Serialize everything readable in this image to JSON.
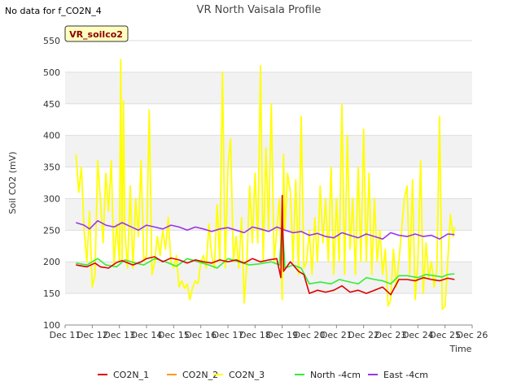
{
  "nodata_note": "No data for f_CO2N_4",
  "chart_data": {
    "type": "line",
    "title": "VR North Vaisala Profile",
    "site_badge": "VR_soilco2",
    "xlabel": "Time",
    "ylabel": "Soil CO2 (mV)",
    "ylim": [
      100,
      550
    ],
    "yticks": [
      100,
      150,
      200,
      250,
      300,
      350,
      400,
      450,
      500,
      550
    ],
    "xlim": [
      11,
      26
    ],
    "xticks": [
      {
        "value": 11,
        "label": "Dec 11"
      },
      {
        "value": 12,
        "label": "Dec 12"
      },
      {
        "value": 13,
        "label": "Dec 13"
      },
      {
        "value": 14,
        "label": "Dec 14"
      },
      {
        "value": 15,
        "label": "Dec 15"
      },
      {
        "value": 16,
        "label": "Dec 16"
      },
      {
        "value": 17,
        "label": "Dec 17"
      },
      {
        "value": 18,
        "label": "Dec 18"
      },
      {
        "value": 19,
        "label": "Dec 19"
      },
      {
        "value": 20,
        "label": "Dec 20"
      },
      {
        "value": 21,
        "label": "Dec 21"
      },
      {
        "value": 22,
        "label": "Dec 22"
      },
      {
        "value": 23,
        "label": "Dec 23"
      },
      {
        "value": 24,
        "label": "Dec 24"
      },
      {
        "value": 25,
        "label": "Dec 25"
      },
      {
        "value": 26,
        "label": "Dec 26"
      }
    ],
    "grid": true,
    "legend_position": "bottom",
    "series": [
      {
        "name": "CO2N_1",
        "color": "#dd0000",
        "points": [
          [
            11.4,
            195
          ],
          [
            11.8,
            192
          ],
          [
            12.1,
            198
          ],
          [
            12.3,
            192
          ],
          [
            12.6,
            190
          ],
          [
            12.9,
            199
          ],
          [
            13.1,
            202
          ],
          [
            13.5,
            195
          ],
          [
            13.8,
            200
          ],
          [
            14.0,
            205
          ],
          [
            14.3,
            208
          ],
          [
            14.6,
            200
          ],
          [
            14.9,
            206
          ],
          [
            15.2,
            203
          ],
          [
            15.5,
            198
          ],
          [
            15.8,
            203
          ],
          [
            16.1,
            200
          ],
          [
            16.4,
            198
          ],
          [
            16.7,
            203
          ],
          [
            17.0,
            200
          ],
          [
            17.3,
            203
          ],
          [
            17.6,
            198
          ],
          [
            17.9,
            205
          ],
          [
            18.2,
            200
          ],
          [
            18.5,
            203
          ],
          [
            18.8,
            205
          ],
          [
            18.95,
            175
          ],
          [
            19.0,
            305
          ],
          [
            19.05,
            185
          ],
          [
            19.3,
            200
          ],
          [
            19.6,
            185
          ],
          [
            19.8,
            180
          ],
          [
            20.0,
            150
          ],
          [
            20.3,
            155
          ],
          [
            20.6,
            152
          ],
          [
            20.9,
            155
          ],
          [
            21.2,
            162
          ],
          [
            21.5,
            152
          ],
          [
            21.8,
            155
          ],
          [
            22.1,
            150
          ],
          [
            22.4,
            155
          ],
          [
            22.7,
            160
          ],
          [
            23.0,
            148
          ],
          [
            23.3,
            172
          ],
          [
            23.6,
            172
          ],
          [
            23.9,
            170
          ],
          [
            24.2,
            175
          ],
          [
            24.5,
            172
          ],
          [
            24.8,
            170
          ],
          [
            25.1,
            174
          ],
          [
            25.35,
            172
          ]
        ]
      },
      {
        "name": "CO2N_2",
        "color": "#ff9900",
        "points": []
      },
      {
        "name": "CO2N_3",
        "color": "#ffff00",
        "points": [
          [
            11.4,
            370
          ],
          [
            11.5,
            310
          ],
          [
            11.6,
            350
          ],
          [
            11.7,
            250
          ],
          [
            11.8,
            200
          ],
          [
            11.9,
            280
          ],
          [
            12.0,
            160
          ],
          [
            12.1,
            180
          ],
          [
            12.2,
            360
          ],
          [
            12.3,
            300
          ],
          [
            12.4,
            230
          ],
          [
            12.5,
            340
          ],
          [
            12.6,
            280
          ],
          [
            12.7,
            360
          ],
          [
            12.8,
            195
          ],
          [
            12.9,
            260
          ],
          [
            13.0,
            200
          ],
          [
            13.05,
            520
          ],
          [
            13.1,
            200
          ],
          [
            13.15,
            455
          ],
          [
            13.2,
            250
          ],
          [
            13.3,
            190
          ],
          [
            13.4,
            320
          ],
          [
            13.5,
            190
          ],
          [
            13.6,
            300
          ],
          [
            13.7,
            240
          ],
          [
            13.8,
            360
          ],
          [
            13.9,
            200
          ],
          [
            14.0,
            210
          ],
          [
            14.1,
            440
          ],
          [
            14.2,
            180
          ],
          [
            14.3,
            200
          ],
          [
            14.4,
            240
          ],
          [
            14.5,
            210
          ],
          [
            14.6,
            250
          ],
          [
            14.7,
            220
          ],
          [
            14.8,
            270
          ],
          [
            14.9,
            200
          ],
          [
            15.0,
            190
          ],
          [
            15.1,
            210
          ],
          [
            15.2,
            160
          ],
          [
            15.3,
            170
          ],
          [
            15.4,
            158
          ],
          [
            15.5,
            165
          ],
          [
            15.6,
            140
          ],
          [
            15.7,
            160
          ],
          [
            15.8,
            170
          ],
          [
            15.9,
            165
          ],
          [
            16.0,
            200
          ],
          [
            16.1,
            210
          ],
          [
            16.2,
            190
          ],
          [
            16.3,
            260
          ],
          [
            16.4,
            210
          ],
          [
            16.5,
            190
          ],
          [
            16.6,
            290
          ],
          [
            16.7,
            200
          ],
          [
            16.8,
            500
          ],
          [
            16.9,
            190
          ],
          [
            17.0,
            350
          ],
          [
            17.1,
            395
          ],
          [
            17.2,
            200
          ],
          [
            17.3,
            240
          ],
          [
            17.4,
            190
          ],
          [
            17.5,
            270
          ],
          [
            17.6,
            135
          ],
          [
            17.7,
            200
          ],
          [
            17.8,
            320
          ],
          [
            17.9,
            230
          ],
          [
            18.0,
            340
          ],
          [
            18.1,
            230
          ],
          [
            18.2,
            510
          ],
          [
            18.3,
            200
          ],
          [
            18.4,
            380
          ],
          [
            18.5,
            250
          ],
          [
            18.6,
            450
          ],
          [
            18.7,
            200
          ],
          [
            18.8,
            250
          ],
          [
            18.9,
            300
          ],
          [
            19.0,
            140
          ],
          [
            19.05,
            370
          ],
          [
            19.1,
            250
          ],
          [
            19.2,
            340
          ],
          [
            19.3,
            310
          ],
          [
            19.4,
            200
          ],
          [
            19.5,
            330
          ],
          [
            19.6,
            180
          ],
          [
            19.7,
            430
          ],
          [
            19.8,
            190
          ],
          [
            19.9,
            200
          ],
          [
            20.0,
            250
          ],
          [
            20.1,
            180
          ],
          [
            20.2,
            270
          ],
          [
            20.3,
            200
          ],
          [
            20.4,
            320
          ],
          [
            20.5,
            230
          ],
          [
            20.6,
            300
          ],
          [
            20.7,
            200
          ],
          [
            20.8,
            350
          ],
          [
            20.9,
            180
          ],
          [
            21.0,
            300
          ],
          [
            21.1,
            200
          ],
          [
            21.2,
            450
          ],
          [
            21.3,
            180
          ],
          [
            21.4,
            400
          ],
          [
            21.5,
            220
          ],
          [
            21.6,
            300
          ],
          [
            21.7,
            180
          ],
          [
            21.8,
            350
          ],
          [
            21.9,
            200
          ],
          [
            22.0,
            410
          ],
          [
            22.1,
            200
          ],
          [
            22.2,
            340
          ],
          [
            22.3,
            180
          ],
          [
            22.4,
            300
          ],
          [
            22.5,
            200
          ],
          [
            22.6,
            250
          ],
          [
            22.7,
            180
          ],
          [
            22.8,
            220
          ],
          [
            22.9,
            130
          ],
          [
            23.0,
            140
          ],
          [
            23.1,
            220
          ],
          [
            23.2,
            160
          ],
          [
            23.3,
            200
          ],
          [
            23.4,
            250
          ],
          [
            23.5,
            300
          ],
          [
            23.6,
            320
          ],
          [
            23.7,
            180
          ],
          [
            23.8,
            330
          ],
          [
            23.9,
            140
          ],
          [
            24.0,
            200
          ],
          [
            24.1,
            360
          ],
          [
            24.2,
            150
          ],
          [
            24.3,
            230
          ],
          [
            24.4,
            175
          ],
          [
            24.5,
            200
          ],
          [
            24.6,
            160
          ],
          [
            24.7,
            190
          ],
          [
            24.8,
            430
          ],
          [
            24.9,
            125
          ],
          [
            25.0,
            130
          ],
          [
            25.1,
            200
          ],
          [
            25.2,
            275
          ],
          [
            25.3,
            240
          ],
          [
            25.35,
            255
          ]
        ]
      },
      {
        "name": "North -4cm",
        "color": "#33ee33",
        "points": [
          [
            11.4,
            198
          ],
          [
            11.8,
            195
          ],
          [
            12.2,
            205
          ],
          [
            12.5,
            195
          ],
          [
            12.9,
            192
          ],
          [
            13.2,
            203
          ],
          [
            13.6,
            198
          ],
          [
            13.9,
            195
          ],
          [
            14.3,
            205
          ],
          [
            14.7,
            200
          ],
          [
            15.1,
            193
          ],
          [
            15.5,
            205
          ],
          [
            15.9,
            200
          ],
          [
            16.3,
            195
          ],
          [
            16.6,
            190
          ],
          [
            17.0,
            205
          ],
          [
            17.4,
            200
          ],
          [
            17.8,
            195
          ],
          [
            18.2,
            197
          ],
          [
            18.6,
            200
          ],
          [
            18.9,
            195
          ],
          [
            19.0,
            265
          ],
          [
            19.1,
            190
          ],
          [
            19.4,
            195
          ],
          [
            19.7,
            190
          ],
          [
            20.0,
            165
          ],
          [
            20.4,
            168
          ],
          [
            20.8,
            165
          ],
          [
            21.1,
            172
          ],
          [
            21.5,
            168
          ],
          [
            21.8,
            165
          ],
          [
            22.1,
            175
          ],
          [
            22.4,
            172
          ],
          [
            22.7,
            170
          ],
          [
            23.0,
            165
          ],
          [
            23.3,
            178
          ],
          [
            23.6,
            178
          ],
          [
            24.0,
            175
          ],
          [
            24.3,
            180
          ],
          [
            24.6,
            178
          ],
          [
            24.9,
            176
          ],
          [
            25.1,
            180
          ],
          [
            25.35,
            181
          ]
        ]
      },
      {
        "name": "East -4cm",
        "color": "#9933ee",
        "points": [
          [
            11.4,
            262
          ],
          [
            11.7,
            258
          ],
          [
            11.9,
            252
          ],
          [
            12.2,
            265
          ],
          [
            12.5,
            258
          ],
          [
            12.8,
            255
          ],
          [
            13.1,
            262
          ],
          [
            13.4,
            256
          ],
          [
            13.7,
            250
          ],
          [
            14.0,
            258
          ],
          [
            14.3,
            255
          ],
          [
            14.6,
            252
          ],
          [
            14.9,
            258
          ],
          [
            15.2,
            255
          ],
          [
            15.5,
            250
          ],
          [
            15.8,
            255
          ],
          [
            16.1,
            252
          ],
          [
            16.4,
            248
          ],
          [
            16.7,
            252
          ],
          [
            17.0,
            254
          ],
          [
            17.3,
            250
          ],
          [
            17.6,
            246
          ],
          [
            17.9,
            255
          ],
          [
            18.2,
            252
          ],
          [
            18.5,
            248
          ],
          [
            18.8,
            255
          ],
          [
            19.1,
            250
          ],
          [
            19.4,
            246
          ],
          [
            19.7,
            248
          ],
          [
            20.0,
            242
          ],
          [
            20.3,
            245
          ],
          [
            20.6,
            240
          ],
          [
            20.9,
            238
          ],
          [
            21.2,
            246
          ],
          [
            21.5,
            242
          ],
          [
            21.8,
            238
          ],
          [
            22.1,
            244
          ],
          [
            22.4,
            240
          ],
          [
            22.7,
            236
          ],
          [
            23.0,
            246
          ],
          [
            23.3,
            242
          ],
          [
            23.6,
            240
          ],
          [
            23.9,
            244
          ],
          [
            24.2,
            240
          ],
          [
            24.5,
            242
          ],
          [
            24.8,
            236
          ],
          [
            25.1,
            244
          ],
          [
            25.35,
            243
          ]
        ]
      }
    ]
  }
}
